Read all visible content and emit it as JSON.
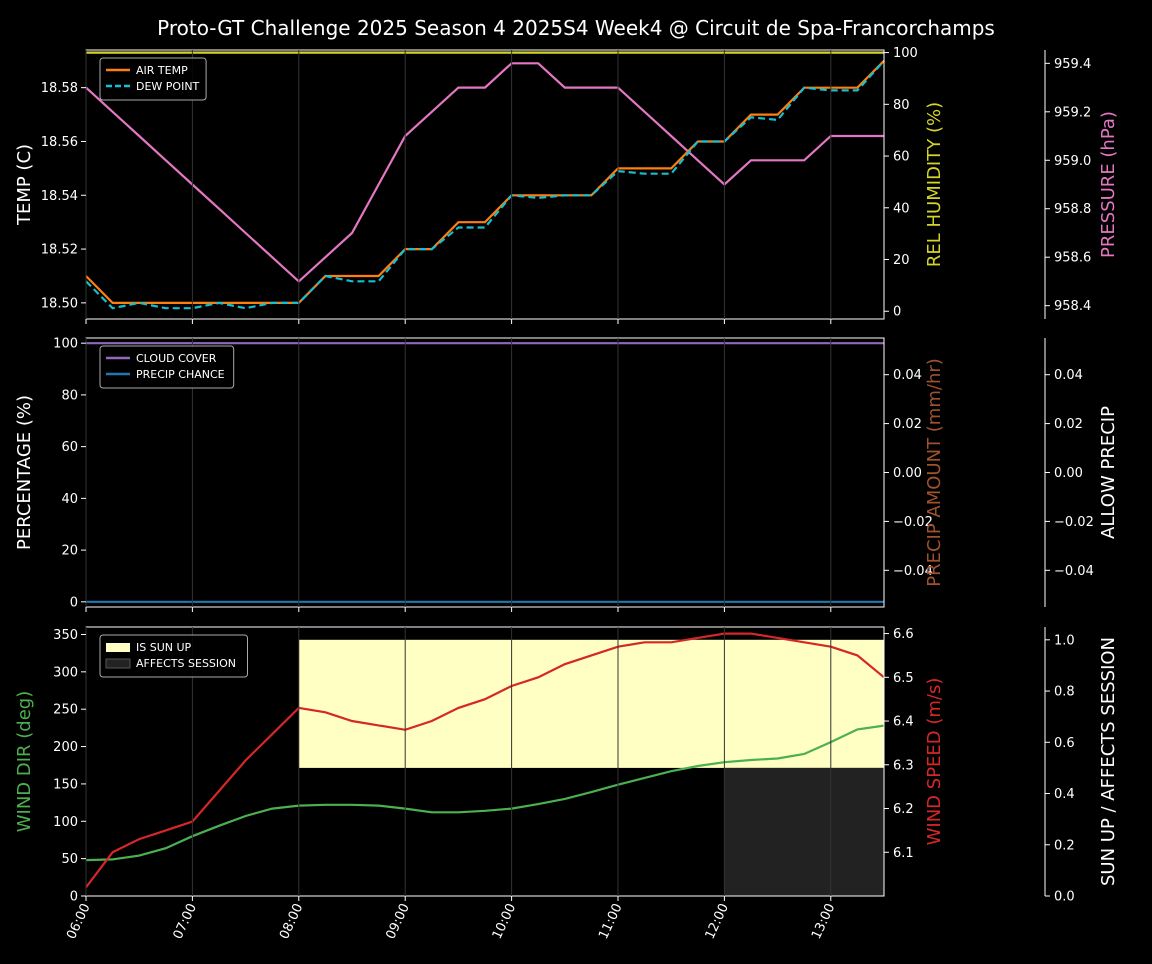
{
  "title": "Proto-GT Challenge  2025 Season 4 2025S4 Week4 @ Circuit de Spa-Francorchamps",
  "x_ticks": [
    "06:00",
    "07:00",
    "08:00",
    "09:00",
    "10:00",
    "11:00",
    "12:00",
    "13:00"
  ],
  "colors": {
    "air_temp": "#ff7f0e",
    "dew_point": "#17becf",
    "humidity": "#d4d42a",
    "pressure": "#e377c2",
    "cloud_cover": "#9467bd",
    "precip_chance": "#1f77b4",
    "precip_amount": "#a0522d",
    "wind_dir": "#4caf50",
    "wind_speed": "#d62728",
    "sun_up": "#ffffc4",
    "affects_session": "#222222"
  },
  "chart_data": [
    {
      "type": "line",
      "x_hours": [
        6,
        6.25,
        6.5,
        6.75,
        7,
        7.25,
        7.5,
        7.75,
        8,
        8.25,
        8.5,
        8.75,
        9,
        9.25,
        9.5,
        9.75,
        10,
        10.25,
        10.5,
        10.75,
        11,
        11.25,
        11.5,
        11.75,
        12,
        12.25,
        12.5,
        12.75,
        13,
        13.25,
        13.5
      ],
      "y_left_label": "TEMP (C)",
      "y_left_ticks": [
        "18.50",
        "18.52",
        "18.54",
        "18.56",
        "18.58"
      ],
      "y_left_range": [
        18.494,
        18.594
      ],
      "y_right_label": "REL HUMIDITY (%)",
      "y_right_ticks": [
        "0",
        "20",
        "40",
        "60",
        "80",
        "100"
      ],
      "y_right_range": [
        -3,
        101
      ],
      "y_far_label": "PRESSURE (hPa)",
      "y_far_ticks": [
        "958.4",
        "958.6",
        "958.8",
        "959.0",
        "959.2",
        "959.4"
      ],
      "y_far_range": [
        958.345,
        959.455
      ],
      "legend": [
        "AIR TEMP",
        "DEW POINT"
      ],
      "series": [
        {
          "name": "AIR TEMP",
          "values": [
            18.51,
            18.5,
            18.5,
            18.5,
            18.5,
            18.5,
            18.5,
            18.5,
            18.5,
            18.51,
            18.51,
            18.51,
            18.52,
            18.52,
            18.53,
            18.53,
            18.54,
            18.54,
            18.54,
            18.54,
            18.55,
            18.55,
            18.55,
            18.56,
            18.56,
            18.57,
            18.57,
            18.58,
            18.58,
            18.58,
            18.59
          ]
        },
        {
          "name": "DEW POINT",
          "values": [
            18.508,
            18.498,
            18.5,
            18.498,
            18.498,
            18.5,
            18.498,
            18.5,
            18.5,
            18.51,
            18.508,
            18.508,
            18.52,
            18.52,
            18.528,
            18.528,
            18.54,
            18.539,
            18.54,
            18.54,
            18.549,
            18.548,
            18.548,
            18.56,
            18.56,
            18.569,
            18.568,
            18.58,
            18.579,
            18.579,
            18.59
          ]
        },
        {
          "name": "REL HUMIDITY",
          "values": [
            100,
            100,
            100,
            100,
            100,
            100,
            100,
            100,
            100,
            100,
            100,
            100,
            100,
            100,
            100,
            100,
            100,
            100,
            100,
            100,
            100,
            100,
            100,
            100,
            100,
            100,
            100,
            100,
            100,
            100,
            100
          ]
        },
        {
          "name": "PRESSURE",
          "values": [
            959.3,
            959.2,
            959.1,
            959.0,
            958.9,
            958.8,
            958.7,
            958.6,
            958.5,
            958.6,
            958.7,
            958.9,
            959.1,
            959.2,
            959.3,
            959.3,
            959.4,
            959.4,
            959.3,
            959.3,
            959.3,
            959.2,
            959.1,
            959.0,
            958.9,
            959.0,
            959.0,
            959.0,
            959.1,
            959.1,
            959.1
          ]
        }
      ]
    },
    {
      "type": "line",
      "x_hours": [
        6,
        13.5
      ],
      "y_left_label": "PERCENTAGE (%)",
      "y_left_ticks": [
        "0",
        "20",
        "40",
        "60",
        "80",
        "100"
      ],
      "y_left_range": [
        -2,
        102
      ],
      "y_right_label": "PRECIP AMOUNT (mm/hr)",
      "y_right_ticks": [
        "−0.04",
        "−0.02",
        "0.00",
        "0.02",
        "0.04"
      ],
      "y_right_range": [
        -0.055,
        0.055
      ],
      "y_far_label": "ALLOW PRECIP",
      "y_far_ticks": [
        "−0.04",
        "−0.02",
        "0.00",
        "0.02",
        "0.04"
      ],
      "y_far_range": [
        -0.055,
        0.055
      ],
      "legend": [
        "CLOUD COVER",
        "PRECIP CHANCE"
      ],
      "series": [
        {
          "name": "CLOUD COVER",
          "values": [
            100,
            100
          ]
        },
        {
          "name": "PRECIP CHANCE",
          "values": [
            0,
            0
          ]
        }
      ]
    },
    {
      "type": "line",
      "x_hours": [
        6,
        6.25,
        6.5,
        6.75,
        7,
        7.25,
        7.5,
        7.75,
        8,
        8.25,
        8.5,
        8.75,
        9,
        9.25,
        9.5,
        9.75,
        10,
        10.25,
        10.5,
        10.75,
        11,
        11.25,
        11.5,
        11.75,
        12,
        12.25,
        12.5,
        12.75,
        13,
        13.25,
        13.5
      ],
      "y_left_label": "WIND DIR (deg)",
      "y_left_ticks": [
        "0",
        "50",
        "100",
        "150",
        "200",
        "250",
        "300",
        "350"
      ],
      "y_left_range": [
        0,
        360
      ],
      "y_right_label": "WIND SPEED (m/s)",
      "y_right_ticks": [
        "6.1",
        "6.2",
        "6.3",
        "6.4",
        "6.5",
        "6.6"
      ],
      "y_right_range": [
        6.0,
        6.615
      ],
      "y_far_label": "SUN UP / AFFECTS SESSION",
      "y_far_ticks": [
        "0.0",
        "0.2",
        "0.4",
        "0.6",
        "0.8",
        "1.0"
      ],
      "y_far_range": [
        0,
        1.05
      ],
      "legend": [
        "IS SUN UP",
        "AFFECTS SESSION"
      ],
      "sun_up": {
        "from": 8,
        "to": 13.5,
        "value": 1.0
      },
      "affects_session": {
        "from": 12,
        "to": 13.5,
        "value": 0.5
      },
      "series": [
        {
          "name": "WIND DIR",
          "values": [
            48,
            49,
            54,
            64,
            80,
            94,
            107,
            117,
            121,
            122,
            122,
            121,
            117,
            112,
            112,
            114,
            117,
            123,
            130,
            139,
            149,
            158,
            167,
            174,
            179,
            182,
            184,
            190,
            206,
            223,
            228
          ]
        },
        {
          "name": "WIND SPEED",
          "values": [
            6.02,
            6.1,
            6.13,
            6.15,
            6.17,
            6.24,
            6.31,
            6.37,
            6.43,
            6.42,
            6.4,
            6.39,
            6.38,
            6.4,
            6.43,
            6.45,
            6.48,
            6.5,
            6.53,
            6.55,
            6.57,
            6.58,
            6.58,
            6.59,
            6.6,
            6.6,
            6.59,
            6.58,
            6.57,
            6.55,
            6.5
          ]
        }
      ]
    }
  ]
}
